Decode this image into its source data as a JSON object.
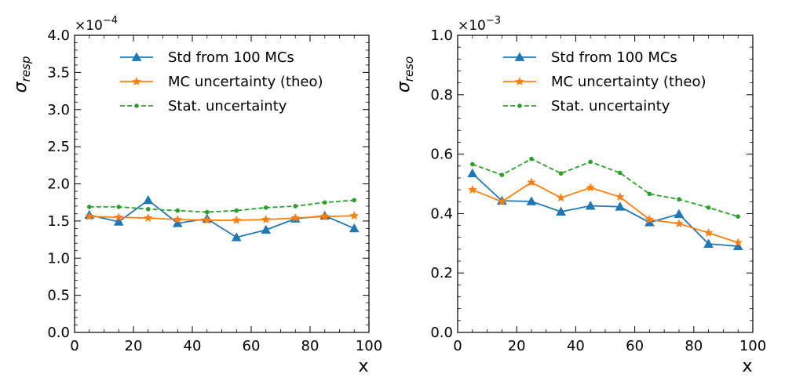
{
  "chart_data": [
    {
      "type": "line",
      "ylabel": "σ",
      "ylabel_sub": "resp",
      "xlabel": "x",
      "xlim": [
        0,
        100
      ],
      "ylim": [
        0,
        4.0
      ],
      "y_exponent": "×10",
      "y_exponent_power": "−4",
      "x_ticks": [
        0,
        20,
        40,
        60,
        80,
        100
      ],
      "x_tick_labels": [
        "0",
        "20",
        "40",
        "60",
        "80",
        "100"
      ],
      "y_ticks": [
        0,
        0.5,
        1.0,
        1.5,
        2.0,
        2.5,
        3.0,
        3.5,
        4.0
      ],
      "y_tick_labels": [
        "0.0",
        "0.5",
        "1.0",
        "1.5",
        "2.0",
        "2.5",
        "3.0",
        "3.5",
        "4.0"
      ],
      "x": [
        5,
        15,
        25,
        35,
        45,
        55,
        65,
        75,
        85,
        95
      ],
      "series": [
        {
          "name": "Std from 100 MCs",
          "color": "#1f77b4",
          "marker": "triangle",
          "dash": "solid",
          "values": [
            1.58,
            1.49,
            1.78,
            1.47,
            1.53,
            1.28,
            1.38,
            1.53,
            1.57,
            1.4
          ]
        },
        {
          "name": "MC uncertainty (theo)",
          "color": "#ff7f0e",
          "marker": "star",
          "dash": "solid",
          "values": [
            1.56,
            1.55,
            1.54,
            1.52,
            1.51,
            1.51,
            1.52,
            1.54,
            1.56,
            1.57
          ]
        },
        {
          "name": "Stat. uncertainty",
          "color": "#2ca02c",
          "marker": "dot",
          "dash": "dashed",
          "values": [
            1.69,
            1.69,
            1.66,
            1.64,
            1.62,
            1.64,
            1.68,
            1.7,
            1.75,
            1.78
          ]
        }
      ],
      "legend_position": "top-center"
    },
    {
      "type": "line",
      "ylabel": "σ",
      "ylabel_sub": "reso",
      "xlabel": "x",
      "xlim": [
        0,
        100
      ],
      "ylim": [
        0,
        1.0
      ],
      "y_exponent": "×10",
      "y_exponent_power": "−3",
      "x_ticks": [
        0,
        20,
        40,
        60,
        80,
        100
      ],
      "x_tick_labels": [
        "0",
        "20",
        "40",
        "60",
        "80",
        "100"
      ],
      "y_ticks": [
        0,
        0.2,
        0.4,
        0.6,
        0.8,
        1.0
      ],
      "y_tick_labels": [
        "0.0",
        "0.2",
        "0.4",
        "0.6",
        "0.8",
        "1.0"
      ],
      "x": [
        5,
        15,
        25,
        35,
        45,
        55,
        65,
        75,
        85,
        95
      ],
      "series": [
        {
          "name": "Std from 100 MCs",
          "color": "#1f77b4",
          "marker": "triangle",
          "dash": "solid",
          "values": [
            0.535,
            0.443,
            0.441,
            0.406,
            0.426,
            0.423,
            0.37,
            0.398,
            0.298,
            0.29
          ]
        },
        {
          "name": "MC uncertainty (theo)",
          "color": "#ff7f0e",
          "marker": "star",
          "dash": "solid",
          "values": [
            0.48,
            0.44,
            0.505,
            0.453,
            0.487,
            0.456,
            0.38,
            0.366,
            0.335,
            0.302
          ]
        },
        {
          "name": "Stat. uncertainty",
          "color": "#2ca02c",
          "marker": "dot",
          "dash": "dashed",
          "values": [
            0.566,
            0.53,
            0.584,
            0.535,
            0.574,
            0.537,
            0.466,
            0.448,
            0.42,
            0.39
          ]
        }
      ],
      "legend_position": "top-center"
    }
  ]
}
